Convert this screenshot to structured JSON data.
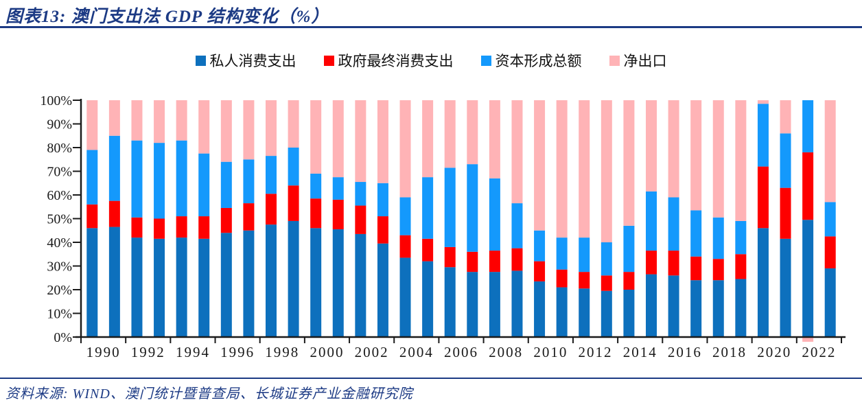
{
  "header": {
    "title": "图表13:  澳门支出法 GDP 结构变化（%）"
  },
  "footer": {
    "source": "资料来源:  WIND、澳门统计暨普查局、长城证券产业金融研究院"
  },
  "colors": {
    "accent_navy": "#1c3a84",
    "axis": "#1a1a1a",
    "private_consumption": "#0d70bd",
    "government_consumption": "#fe0000",
    "capital_formation": "#1499fc",
    "net_exports": "#ffb3b6"
  },
  "chart_data": {
    "type": "bar",
    "stacked": true,
    "percent_stacked": true,
    "grid": false,
    "legend_position": "top",
    "title": "澳门支出法 GDP 结构变化（%）",
    "xlabel": "",
    "ylabel": "",
    "ylim": [
      0,
      100
    ],
    "ytick_labels": [
      "0%",
      "10%",
      "20%",
      "30%",
      "40%",
      "50%",
      "60%",
      "70%",
      "80%",
      "90%",
      "100%"
    ],
    "xtick_labels": [
      "1990",
      "1992",
      "1994",
      "1996",
      "1998",
      "2000",
      "2002",
      "2004",
      "2006",
      "2008",
      "2010",
      "2012",
      "2014",
      "2016",
      "2018",
      "2020",
      "2022"
    ],
    "categories": [
      1990,
      1991,
      1992,
      1993,
      1994,
      1995,
      1996,
      1997,
      1998,
      1999,
      2000,
      2001,
      2002,
      2003,
      2004,
      2005,
      2006,
      2007,
      2008,
      2009,
      2010,
      2011,
      2012,
      2013,
      2014,
      2015,
      2016,
      2017,
      2018,
      2019,
      2020,
      2021,
      2022,
      2023
    ],
    "series": [
      {
        "name": "私人消费支出",
        "color": "#0d70bd",
        "values": [
          46,
          46.5,
          42,
          41.5,
          42,
          41.5,
          44,
          45,
          47.5,
          49,
          46,
          45.5,
          43.5,
          39.5,
          33.5,
          32,
          29.5,
          27.5,
          27.5,
          28,
          23.5,
          21,
          20.5,
          19.5,
          20,
          26.5,
          26,
          24,
          24,
          24.5,
          46,
          41.5,
          49.5,
          29
        ]
      },
      {
        "name": "政府最终消费支出",
        "color": "#fe0000",
        "values": [
          10,
          11,
          8.5,
          8.5,
          9,
          9.5,
          10.5,
          11.5,
          13,
          15,
          12.5,
          12.5,
          12,
          11.5,
          9.5,
          9.5,
          8.5,
          8.5,
          9,
          9.5,
          8.5,
          7.5,
          7,
          6.5,
          7.5,
          10,
          10.5,
          10,
          9,
          10.5,
          26,
          21.5,
          28.5,
          13.5
        ]
      },
      {
        "name": "资本形成总额",
        "color": "#1499fc",
        "values": [
          23,
          27.5,
          32.5,
          32,
          32,
          26.5,
          19.5,
          18.5,
          16,
          16,
          10.5,
          9.5,
          10,
          14,
          16,
          26,
          33.5,
          37,
          30.5,
          19,
          13,
          13.5,
          14.5,
          14,
          19.5,
          25,
          22.5,
          19.5,
          17.5,
          14,
          26.5,
          23,
          24,
          14.5
        ]
      },
      {
        "name": "净出口",
        "color": "#ffb3b6",
        "values": [
          21,
          15,
          17,
          18,
          17,
          22.5,
          26,
          25,
          23.5,
          20,
          31,
          32.5,
          34.5,
          35,
          41,
          32.5,
          28.5,
          27,
          33,
          43.5,
          55,
          58,
          58,
          60,
          53,
          38.5,
          41,
          46.5,
          49.5,
          51,
          1.5,
          14,
          -2,
          43
        ]
      }
    ]
  }
}
